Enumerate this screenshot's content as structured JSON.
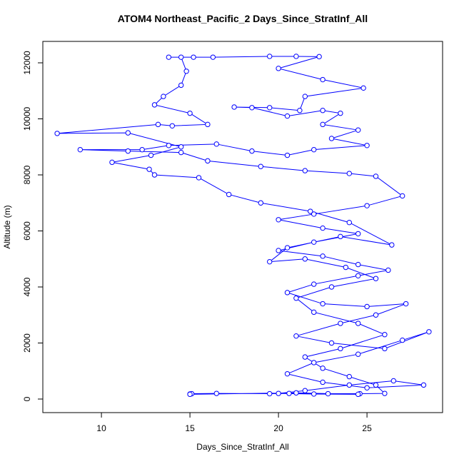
{
  "chart_data": {
    "type": "line",
    "title": "ATOM4 Northeast_Pacific_2 Days_Since_StratInf_All",
    "x_label": "Days_Since_StratInf_All",
    "y_label": "Altitude (m)",
    "xlim": [
      6.69,
      29.27
    ],
    "ylim": [
      -484,
      12764
    ],
    "xticks": [
      10,
      15,
      20,
      25
    ],
    "yticks": [
      0,
      2000,
      4000,
      6000,
      8000,
      10000,
      12000
    ],
    "markers": true,
    "x": [
      15.0,
      15.1,
      16.5,
      19.5,
      20.6,
      22.8,
      24.6,
      26.0,
      25.5,
      24.0,
      22.5,
      21.5,
      23.5,
      26.0,
      24.5,
      22.0,
      21.0,
      23.0,
      25.5,
      23.8,
      21.5,
      19.5,
      20.5,
      23.5,
      26.4,
      24.0,
      21.8,
      19.0,
      17.2,
      15.5,
      13.0,
      12.7,
      10.6,
      12.8,
      14.5,
      11.5,
      7.5,
      13.2,
      14.0,
      16.0,
      15.0,
      13.0,
      13.5,
      14.5,
      14.8,
      14.5,
      13.8,
      15.2,
      16.3,
      19.5,
      21.0,
      22.3,
      20.0,
      22.5,
      24.8,
      21.5,
      21.2,
      19.5,
      17.5,
      18.5,
      20.5,
      22.5,
      23.5,
      22.5,
      24.5,
      23.0,
      25.0,
      22.0,
      20.5,
      18.5,
      16.5,
      13.8,
      12.3,
      8.8,
      11.5,
      14.5,
      16.0,
      19.0,
      21.5,
      24.0,
      25.5,
      27.0,
      25.0,
      22.0,
      20.0,
      22.5,
      24.5,
      22.0,
      20.0,
      22.5,
      24.5,
      26.2,
      24.5,
      22.0,
      20.5,
      22.5,
      25.0,
      27.2,
      25.5,
      23.5,
      21.0,
      23.0,
      26.0,
      28.5,
      27.0,
      24.5,
      22.0,
      20.5,
      22.5,
      25.0,
      28.2,
      26.5,
      24.0,
      21.5,
      20.0,
      22.0,
      24.5,
      21.0,
      15.0
    ],
    "series": [
      {
        "name": "Altitude",
        "color": "#0000ff",
        "values": [
          180,
          190,
          200,
          190,
          200,
          190,
          190,
          200,
          500,
          800,
          1100,
          1500,
          1800,
          2300,
          2700,
          3100,
          3600,
          4000,
          4300,
          4700,
          5000,
          4900,
          5400,
          5800,
          5500,
          6300,
          6700,
          7000,
          7300,
          7900,
          8000,
          8200,
          8450,
          8700,
          9000,
          9500,
          9480,
          9800,
          9750,
          9800,
          10200,
          10500,
          10800,
          11200,
          11700,
          12200,
          12200,
          12200,
          12200,
          12230,
          12230,
          12220,
          11800,
          11400,
          11100,
          10800,
          10300,
          10400,
          10420,
          10400,
          10100,
          10300,
          10200,
          9800,
          9600,
          9300,
          9050,
          8900,
          8700,
          8850,
          9100,
          9050,
          8900,
          8900,
          8850,
          8800,
          8500,
          8300,
          8150,
          8050,
          7950,
          7250,
          6900,
          6600,
          6400,
          6100,
          5900,
          5600,
          5300,
          5100,
          4800,
          4600,
          4400,
          4100,
          3800,
          3400,
          3300,
          3400,
          3000,
          2700,
          2250,
          2000,
          1800,
          2400,
          2100,
          1600,
          1300,
          900,
          600,
          400,
          500,
          650,
          500,
          300,
          200,
          180,
          170,
          220,
          170
        ]
      }
    ]
  }
}
